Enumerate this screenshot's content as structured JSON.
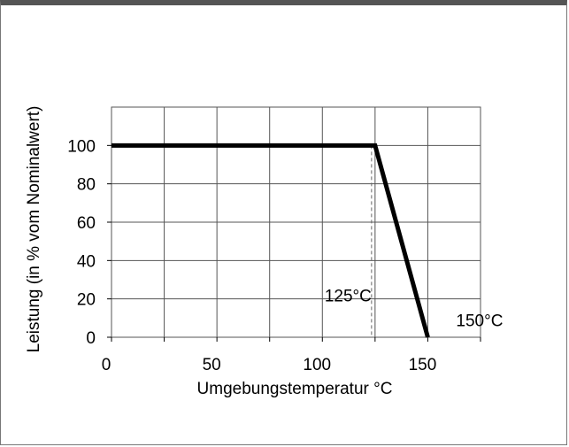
{
  "chart_data": {
    "type": "line",
    "title": "",
    "xlabel": "Umgebungstemperatur °C",
    "ylabel": "Leistung (in % vom Nominalwert)",
    "xlim": [
      0,
      175
    ],
    "ylim": [
      0,
      120
    ],
    "xticks": [
      0,
      50,
      100,
      150
    ],
    "yticks": [
      0,
      20,
      40,
      60,
      80,
      100
    ],
    "x_gridlines": [
      0,
      25,
      50,
      75,
      100,
      125,
      150,
      175
    ],
    "y_gridlines": [
      0,
      20,
      40,
      60,
      80,
      100,
      120
    ],
    "grid": true,
    "legend": "none",
    "series": [
      {
        "x": [
          0,
          125,
          150
        ],
        "y": [
          100,
          100,
          0
        ]
      }
    ],
    "reference_lines": [
      {
        "x": 125,
        "style": "dashed"
      }
    ],
    "annotations": [
      {
        "text": "125°C",
        "x": 125,
        "y": 22
      },
      {
        "text": "150°C",
        "x": 150,
        "y": 9
      }
    ],
    "colors": {
      "line": "#000000",
      "grid": "#555555",
      "frame": "#555555"
    }
  }
}
